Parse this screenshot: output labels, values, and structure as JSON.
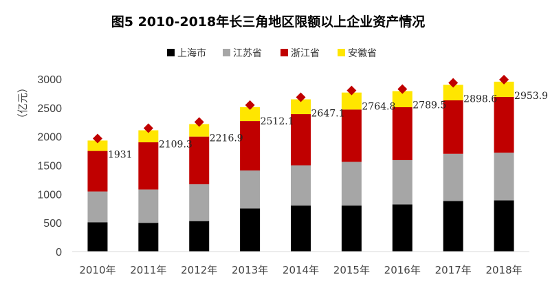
{
  "chart_data": {
    "type": "bar",
    "stacked": true,
    "title": "图5  2010-2018年长三角地区限额以上企业资产情况",
    "ylabel": "（亿元）",
    "xlabel": "",
    "ylim": [
      0,
      3000
    ],
    "yticks": [
      "0",
      "500",
      "1000",
      "1500",
      "2000",
      "2500",
      "3000"
    ],
    "ytick_values": [
      0,
      500,
      1000,
      1500,
      2000,
      2500,
      3000
    ],
    "categories": [
      "2010年",
      "2011年",
      "2012年",
      "2013年",
      "2014年",
      "2015年",
      "2016年",
      "2017年",
      "2018年"
    ],
    "series": [
      {
        "name": "上海市",
        "color": "#000000",
        "values": [
          510,
          500,
          530,
          750,
          800,
          800,
          820,
          880,
          890
        ]
      },
      {
        "name": "江苏省",
        "color": "#a6a6a6",
        "values": [
          535,
          580,
          640,
          660,
          700,
          760,
          770,
          820,
          830
        ]
      },
      {
        "name": "浙江省",
        "color": "#c00000",
        "values": [
          705,
          820,
          830,
          860,
          890,
          910,
          920,
          930,
          970
        ]
      },
      {
        "name": "安徽省",
        "color": "#ffe600",
        "values": [
          181,
          209,
          217,
          242,
          257,
          295,
          280,
          269,
          264
        ]
      }
    ],
    "totals": {
      "color": "#c00000",
      "values": [
        1931,
        2109.3,
        2216.9,
        2512.1,
        2647.1,
        2764.8,
        2789.5,
        2898.6,
        2953.9
      ],
      "labels": [
        "1931",
        "2109.3",
        "2216.9",
        "2512.1",
        "2647.1",
        "2764.8",
        "2789.5",
        "2898.6",
        "2953.9"
      ]
    },
    "legend_position": "top",
    "grid": false
  }
}
